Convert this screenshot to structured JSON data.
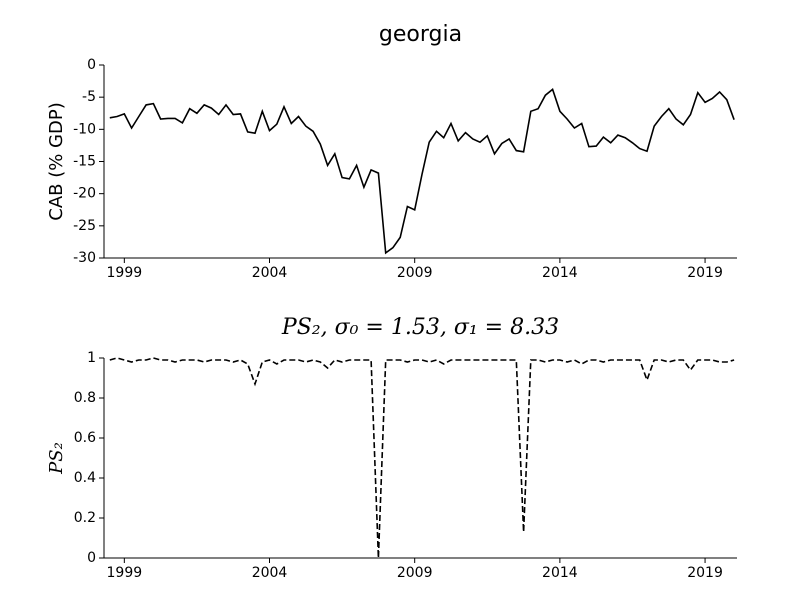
{
  "chart_data": [
    {
      "type": "line",
      "title": "georgia",
      "ylabel": "CAB (% GDP)",
      "xlim": [
        1998.3,
        2020.1
      ],
      "xticks": [
        1999,
        2004,
        2009,
        2014,
        2019
      ],
      "ylim": [
        -30,
        0
      ],
      "yticks": [
        -30,
        -25,
        -20,
        -15,
        -10,
        -5,
        0
      ],
      "x": [
        1998.5,
        1998.75,
        1999,
        1999.25,
        1999.5,
        1999.75,
        2000,
        2000.25,
        2000.5,
        2000.75,
        2001,
        2001.25,
        2001.5,
        2001.75,
        2002,
        2002.25,
        2002.5,
        2002.75,
        2003,
        2003.25,
        2003.5,
        2003.75,
        2004,
        2004.25,
        2004.5,
        2004.75,
        2005,
        2005.25,
        2005.5,
        2005.75,
        2006,
        2006.25,
        2006.5,
        2006.75,
        2007,
        2007.25,
        2007.5,
        2007.75,
        2008,
        2008.25,
        2008.5,
        2008.75,
        2009,
        2009.25,
        2009.5,
        2009.75,
        2010,
        2010.25,
        2010.5,
        2010.75,
        2011,
        2011.25,
        2011.5,
        2011.75,
        2012,
        2012.25,
        2012.5,
        2012.75,
        2013,
        2013.25,
        2013.5,
        2013.75,
        2014,
        2014.25,
        2014.5,
        2014.75,
        2015,
        2015.25,
        2015.5,
        2015.75,
        2016,
        2016.25,
        2016.5,
        2016.75,
        2017,
        2017.25,
        2017.5,
        2017.75,
        2018,
        2018.25,
        2018.5,
        2018.75,
        2019,
        2019.25,
        2019.5,
        2019.75,
        2020
      ],
      "series": [
        {
          "color": "#000000",
          "dash": false,
          "values": [
            -8.2,
            -8.0,
            -7.6,
            -9.8,
            -8.0,
            -6.2,
            -6.0,
            -8.4,
            -8.3,
            -8.3,
            -9.0,
            -6.8,
            -7.5,
            -6.2,
            -6.7,
            -7.7,
            -6.2,
            -7.7,
            -7.6,
            -10.4,
            -10.6,
            -7.2,
            -10.2,
            -9.2,
            -6.5,
            -9.1,
            -8.0,
            -9.5,
            -10.3,
            -12.3,
            -15.6,
            -13.8,
            -17.5,
            -17.7,
            -15.6,
            -19.0,
            -16.3,
            -16.8,
            -29.2,
            -28.4,
            -26.8,
            -22.0,
            -22.5,
            -17.0,
            -12.0,
            -10.3,
            -11.3,
            -9.1,
            -11.8,
            -10.5,
            -11.5,
            -12.0,
            -11.0,
            -13.8,
            -12.2,
            -11.5,
            -13.3,
            -13.5,
            -7.2,
            -6.8,
            -4.7,
            -3.8,
            -7.2,
            -8.4,
            -9.8,
            -9.1,
            -12.7,
            -12.6,
            -11.2,
            -12.1,
            -10.9,
            -11.3,
            -12.1,
            -13.0,
            -13.4,
            -9.5,
            -8.0,
            -6.8,
            -8.4,
            -9.3,
            -7.7,
            -4.3,
            -5.8,
            -5.2,
            -4.2,
            -5.4,
            -8.5
          ]
        }
      ]
    },
    {
      "type": "line",
      "title": "PS₂, σ₀ = 1.53, σ₁ = 8.33",
      "ylabel": "PS₂",
      "xlim": [
        1998.3,
        2020.1
      ],
      "xticks": [
        1999,
        2004,
        2009,
        2014,
        2019
      ],
      "ylim": [
        0,
        1
      ],
      "yticks": [
        0,
        0.2,
        0.4,
        0.6,
        0.8,
        1
      ],
      "x": [
        1998.5,
        1998.75,
        1999,
        1999.25,
        1999.5,
        1999.75,
        2000,
        2000.25,
        2000.5,
        2000.75,
        2001,
        2001.25,
        2001.5,
        2001.75,
        2002,
        2002.25,
        2002.5,
        2002.75,
        2003,
        2003.25,
        2003.5,
        2003.75,
        2004,
        2004.25,
        2004.5,
        2004.75,
        2005,
        2005.25,
        2005.5,
        2005.75,
        2006,
        2006.25,
        2006.5,
        2006.75,
        2007,
        2007.25,
        2007.5,
        2007.75,
        2008,
        2008.25,
        2008.5,
        2008.75,
        2009,
        2009.25,
        2009.5,
        2009.75,
        2010,
        2010.25,
        2010.5,
        2010.75,
        2011,
        2011.25,
        2011.5,
        2011.75,
        2012,
        2012.25,
        2012.5,
        2012.75,
        2013,
        2013.25,
        2013.5,
        2013.75,
        2014,
        2014.25,
        2014.5,
        2014.75,
        2015,
        2015.25,
        2015.5,
        2015.75,
        2016,
        2016.25,
        2016.5,
        2016.75,
        2017,
        2017.25,
        2017.5,
        2017.75,
        2018,
        2018.25,
        2018.5,
        2018.75,
        2019,
        2019.25,
        2019.5,
        2019.75,
        2020
      ],
      "series": [
        {
          "color": "#000000",
          "dash": true,
          "values": [
            0.99,
            1.0,
            0.99,
            0.98,
            0.99,
            0.99,
            1.0,
            0.99,
            0.99,
            0.98,
            0.99,
            0.99,
            0.99,
            0.98,
            0.99,
            0.99,
            0.99,
            0.98,
            0.99,
            0.97,
            0.87,
            0.98,
            0.99,
            0.97,
            0.99,
            0.99,
            0.99,
            0.98,
            0.99,
            0.98,
            0.95,
            0.99,
            0.98,
            0.99,
            0.99,
            0.99,
            0.99,
            0.0,
            0.99,
            0.99,
            0.99,
            0.98,
            0.99,
            0.99,
            0.98,
            0.99,
            0.97,
            0.99,
            0.99,
            0.99,
            0.99,
            0.99,
            0.99,
            0.99,
            0.99,
            0.99,
            0.99,
            0.13,
            0.99,
            0.99,
            0.98,
            0.99,
            0.99,
            0.98,
            0.99,
            0.97,
            0.99,
            0.99,
            0.98,
            0.99,
            0.99,
            0.99,
            0.99,
            0.99,
            0.89,
            0.99,
            0.99,
            0.98,
            0.99,
            0.99,
            0.94,
            0.99,
            0.99,
            0.99,
            0.98,
            0.98,
            0.99
          ]
        }
      ]
    }
  ]
}
